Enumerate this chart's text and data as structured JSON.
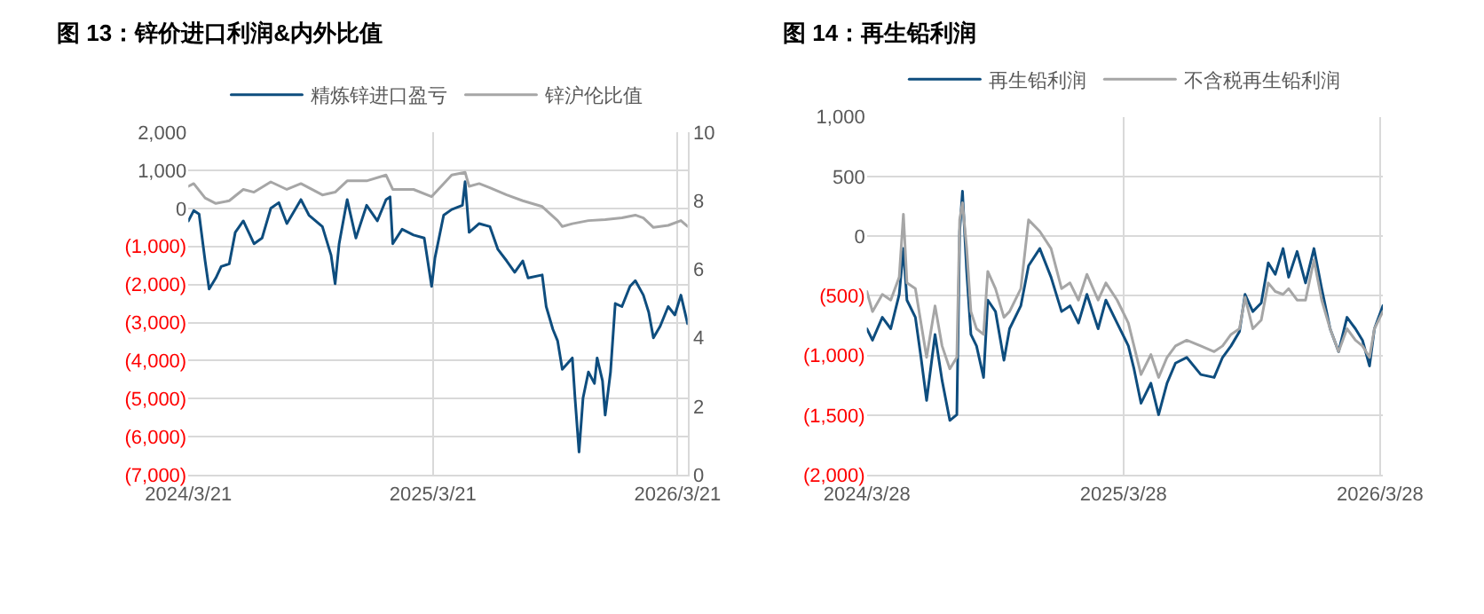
{
  "chart_data": [
    {
      "type": "line",
      "title": "图 13：锌价进口利润&内外比值",
      "legend": "top",
      "grid": true,
      "xlim": [
        "2024-03-21",
        "2026-04-05"
      ],
      "xticks": [
        {
          "value": "2024-03-21",
          "label": "2024/3/21"
        },
        {
          "value": "2025-03-21",
          "label": "2025/3/21"
        },
        {
          "value": "2026-03-21",
          "label": "2026/3/21"
        }
      ],
      "ylim": [
        -7000,
        2000
      ],
      "yticks": [
        {
          "value": -7000,
          "label": "(7,000)"
        },
        {
          "value": -6000,
          "label": "(6,000)"
        },
        {
          "value": -5000,
          "label": "(5,000)"
        },
        {
          "value": -4000,
          "label": "(4,000)"
        },
        {
          "value": -3000,
          "label": "(3,000)"
        },
        {
          "value": -2000,
          "label": "(2,000)"
        },
        {
          "value": -1000,
          "label": "(1,000)"
        },
        0,
        {
          "value": 1000,
          "label": "1,000"
        },
        {
          "value": 2000,
          "label": "2,000"
        }
      ],
      "y2lim": [
        0,
        10
      ],
      "y2ticks": [
        0,
        2,
        4,
        6,
        8,
        10
      ],
      "series": [
        {
          "name": "精炼锌进口盈亏",
          "color": "#0e4d7e",
          "x": [
            "2024-03-21",
            "2024-03-29",
            "2024-04-06",
            "2024-04-15",
            "2024-04-21",
            "2024-05-01",
            "2024-05-09",
            "2024-05-21",
            "2024-05-30",
            "2024-06-11",
            "2024-06-27",
            "2024-07-09",
            "2024-07-22",
            "2024-08-03",
            "2024-08-15",
            "2024-09-05",
            "2024-09-17",
            "2024-10-07",
            "2024-10-20",
            "2024-10-26",
            "2024-11-01",
            "2024-11-13",
            "2024-11-26",
            "2024-12-12",
            "2024-12-28",
            "2025-01-10",
            "2025-01-16",
            "2025-01-20",
            "2025-02-03",
            "2025-02-20",
            "2025-03-08",
            "2025-03-19",
            "2025-03-24",
            "2025-04-06",
            "2025-04-18",
            "2025-05-04",
            "2025-05-08",
            "2025-05-14",
            "2025-05-29",
            "2025-06-14",
            "2025-06-26",
            "2025-07-09",
            "2025-07-21",
            "2025-08-02",
            "2025-08-10",
            "2025-08-31",
            "2025-09-06",
            "2025-09-16",
            "2025-09-23",
            "2025-09-30",
            "2025-10-15",
            "2025-10-19",
            "2025-10-25",
            "2025-10-31",
            "2025-11-08",
            "2025-11-17",
            "2025-11-21",
            "2025-11-29",
            "2025-12-03",
            "2025-12-11",
            "2025-12-18",
            "2025-12-28",
            "2026-01-09",
            "2026-01-17",
            "2026-01-29",
            "2026-02-06",
            "2026-02-13",
            "2026-02-23",
            "2026-03-07",
            "2026-03-17",
            "2026-03-26",
            "2026-04-05"
          ],
          "values": [
            -330,
            -60,
            -150,
            -1380,
            -2120,
            -1830,
            -1530,
            -1460,
            -630,
            -330,
            -930,
            -780,
            0,
            150,
            -400,
            230,
            -180,
            -480,
            -1230,
            -1980,
            -930,
            230,
            -780,
            80,
            -330,
            230,
            300,
            -930,
            -550,
            -700,
            -780,
            -2050,
            -1300,
            -180,
            -30,
            80,
            700,
            -630,
            -400,
            -480,
            -1080,
            -1380,
            -1680,
            -1380,
            -1830,
            -1750,
            -2580,
            -3180,
            -3480,
            -4230,
            -3930,
            -4980,
            -6400,
            -4980,
            -4300,
            -4600,
            -3930,
            -4530,
            -5430,
            -4300,
            -2500,
            -2580,
            -2050,
            -1900,
            -2280,
            -2730,
            -3400,
            -3100,
            -2580,
            -2800,
            -2280,
            -3030
          ]
        },
        {
          "name": "锌沪伦比值",
          "color": "#a6a6a6",
          "axis": "y2",
          "x": [
            "2024-03-21",
            "2024-03-29",
            "2024-04-15",
            "2024-05-01",
            "2024-05-21",
            "2024-06-11",
            "2024-06-27",
            "2024-07-22",
            "2024-08-15",
            "2024-09-05",
            "2024-10-07",
            "2024-10-26",
            "2024-11-13",
            "2024-12-12",
            "2025-01-10",
            "2025-01-20",
            "2025-02-20",
            "2025-03-19",
            "2025-04-06",
            "2025-04-18",
            "2025-05-08",
            "2025-05-14",
            "2025-05-29",
            "2025-06-14",
            "2025-07-09",
            "2025-08-02",
            "2025-08-31",
            "2025-09-23",
            "2025-09-30",
            "2025-10-15",
            "2025-11-08",
            "2025-12-03",
            "2025-12-28",
            "2026-01-17",
            "2026-01-29",
            "2026-02-13",
            "2026-03-07",
            "2026-03-26",
            "2026-04-05"
          ],
          "values": [
            8.42,
            8.5,
            8.08,
            7.92,
            8.0,
            8.33,
            8.25,
            8.55,
            8.33,
            8.5,
            8.17,
            8.25,
            8.58,
            8.58,
            8.75,
            8.33,
            8.33,
            8.12,
            8.5,
            8.75,
            8.83,
            8.42,
            8.5,
            8.38,
            8.17,
            8.0,
            7.83,
            7.42,
            7.25,
            7.33,
            7.42,
            7.45,
            7.5,
            7.58,
            7.5,
            7.22,
            7.28,
            7.42,
            7.25
          ]
        }
      ]
    },
    {
      "type": "line",
      "title": "图 14：再生铅利润",
      "legend": "top",
      "grid": true,
      "xlim": [
        "2024-03-28",
        "2026-04-01"
      ],
      "xticks": [
        {
          "value": "2024-03-28",
          "label": "2024/3/28"
        },
        {
          "value": "2025-03-28",
          "label": "2025/3/28"
        },
        {
          "value": "2026-03-28",
          "label": "2026/3/28"
        }
      ],
      "ylim": [
        -2000,
        1000
      ],
      "yticks": [
        {
          "value": -2000,
          "label": "(2,000)"
        },
        {
          "value": -1500,
          "label": "(1,500)"
        },
        {
          "value": -1000,
          "label": "(1,000)"
        },
        {
          "value": -500,
          "label": "(500)"
        },
        0,
        500,
        {
          "value": 1000,
          "label": "1,000"
        }
      ],
      "x": [
        "2024-03-28",
        "2024-04-05",
        "2024-04-19",
        "2024-05-01",
        "2024-05-13",
        "2024-05-19",
        "2024-05-24",
        "2024-06-05",
        "2024-06-13",
        "2024-06-21",
        "2024-07-03",
        "2024-07-13",
        "2024-07-24",
        "2024-08-03",
        "2024-08-07",
        "2024-08-11",
        "2024-08-17",
        "2024-08-23",
        "2024-08-31",
        "2024-09-10",
        "2024-09-16",
        "2024-09-27",
        "2024-10-09",
        "2024-10-17",
        "2024-11-02",
        "2024-11-13",
        "2024-11-29",
        "2024-12-15",
        "2024-12-30",
        "2025-01-11",
        "2025-01-23",
        "2025-02-04",
        "2025-02-20",
        "2025-03-03",
        "2025-03-19",
        "2025-04-04",
        "2025-04-12",
        "2025-04-22",
        "2025-05-06",
        "2025-05-17",
        "2025-05-29",
        "2025-06-10",
        "2025-06-26",
        "2025-07-16",
        "2025-08-04",
        "2025-08-16",
        "2025-08-28",
        "2025-09-09",
        "2025-09-17",
        "2025-09-28",
        "2025-10-10",
        "2025-10-20",
        "2025-10-30",
        "2025-11-10",
        "2025-11-18",
        "2025-11-30",
        "2025-12-12",
        "2025-12-24",
        "2026-01-04",
        "2026-01-16",
        "2026-01-28",
        "2026-02-09",
        "2026-02-21",
        "2026-03-03",
        "2026-03-13",
        "2026-03-20",
        "2026-04-01"
      ],
      "series": [
        {
          "name": "再生铅利润",
          "color": "#0e4d7e",
          "values": [
            -776,
            -872,
            -680,
            -776,
            -488,
            -104,
            -536,
            -680,
            -1016,
            -1376,
            -824,
            -1208,
            -1544,
            -1496,
            40,
            376,
            -296,
            -824,
            -920,
            -1184,
            -536,
            -632,
            -1040,
            -776,
            -584,
            -248,
            -104,
            -344,
            -632,
            -584,
            -728,
            -488,
            -776,
            -536,
            -728,
            -920,
            -1112,
            -1400,
            -1232,
            -1496,
            -1232,
            -1064,
            -1016,
            -1160,
            -1184,
            -1016,
            -920,
            -800,
            -488,
            -632,
            -560,
            -224,
            -320,
            -104,
            -344,
            -128,
            -392,
            -104,
            -440,
            -776,
            -968,
            -680,
            -776,
            -872,
            -1088,
            -776,
            -584
          ]
        },
        {
          "name": "不含税再生铅利润",
          "color": "#a6a6a6",
          "values": [
            -464,
            -632,
            -488,
            -536,
            -344,
            184,
            -392,
            -440,
            -728,
            -1016,
            -584,
            -920,
            -1112,
            -1016,
            136,
            280,
            -104,
            -632,
            -776,
            -824,
            -296,
            -440,
            -680,
            -632,
            -440,
            136,
            40,
            -104,
            -440,
            -392,
            -536,
            -320,
            -536,
            -392,
            -536,
            -728,
            -920,
            -1160,
            -992,
            -1184,
            -1016,
            -920,
            -872,
            -920,
            -968,
            -920,
            -824,
            -776,
            -512,
            -776,
            -704,
            -392,
            -464,
            -488,
            -440,
            -536,
            -536,
            -200,
            -536,
            -776,
            -968,
            -776,
            -872,
            -920,
            -1016,
            -776,
            -632
          ]
        }
      ]
    }
  ]
}
